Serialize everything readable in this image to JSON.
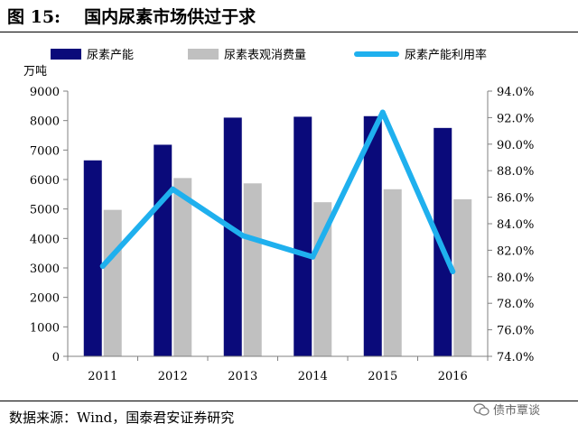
{
  "figure": {
    "label": "图 15:",
    "title": "国内尿素市场供过于求"
  },
  "source_text": "数据来源：Wind，国泰君安证券研究",
  "watermark_text": "债市覃谈",
  "colors": {
    "capacity": "#0a0a7a",
    "consumption": "#c0c0c0",
    "utilization": "#1fb0ee",
    "axis": "#808080"
  },
  "chart_data": {
    "type": "bar+line",
    "categories": [
      "2011",
      "2012",
      "2013",
      "2014",
      "2015",
      "2016"
    ],
    "series": [
      {
        "name": "尿素产能",
        "type": "bar",
        "axis": "left",
        "values": [
          6650,
          7180,
          8100,
          8130,
          8150,
          7750
        ]
      },
      {
        "name": "尿素表观消费量",
        "type": "bar",
        "axis": "left",
        "values": [
          4970,
          6050,
          5870,
          5230,
          5670,
          5330
        ]
      },
      {
        "name": "尿素产能利用率",
        "type": "line",
        "axis": "right",
        "unit": "%",
        "values": [
          80.8,
          86.6,
          83.1,
          81.5,
          92.4,
          80.4
        ]
      }
    ],
    "ylabel_left": "万吨",
    "ylim_left": [
      0,
      9000
    ],
    "yticks_left": [
      "0",
      "1000",
      "2000",
      "3000",
      "4000",
      "5000",
      "6000",
      "7000",
      "8000",
      "9000"
    ],
    "ylim_right": [
      74,
      94
    ],
    "yticks_right": [
      "74.0%",
      "76.0%",
      "78.0%",
      "80.0%",
      "82.0%",
      "84.0%",
      "86.0%",
      "88.0%",
      "90.0%",
      "92.0%",
      "94.0%"
    ],
    "legend_position": "top",
    "grid": false
  }
}
